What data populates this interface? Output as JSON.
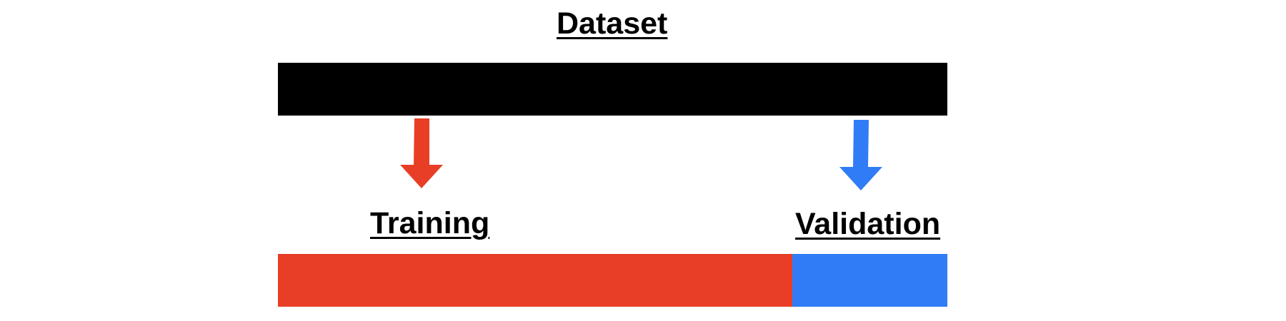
{
  "diagram": {
    "title": "Dataset",
    "dataset_color": "#000000",
    "splits": [
      {
        "label": "Training",
        "fraction": 0.768,
        "color": "#E83E26"
      },
      {
        "label": "Validation",
        "fraction": 0.232,
        "color": "#2F7CF6"
      }
    ]
  }
}
